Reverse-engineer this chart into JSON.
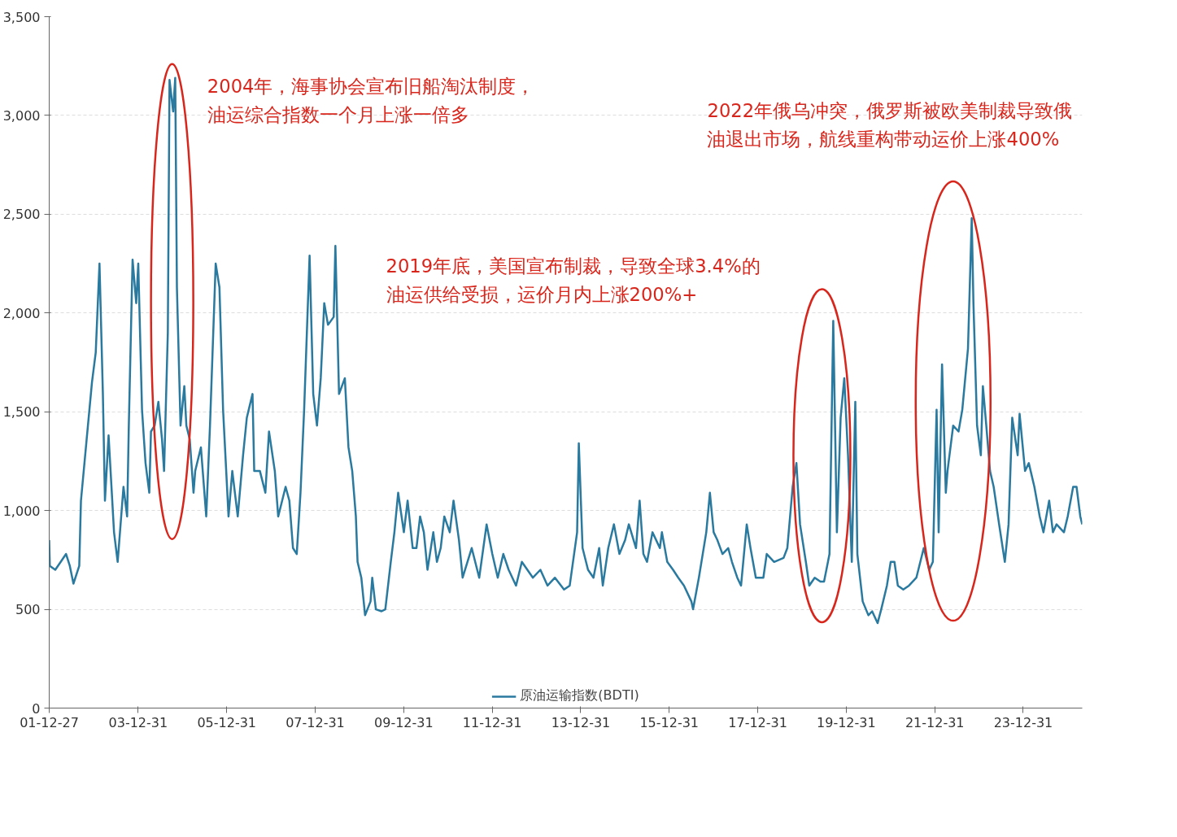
{
  "chart_data": {
    "type": "line",
    "annotations": [
      "2004年，海事协会宣布旧船淘汰制度，油运综合指数一个月上涨一倍多",
      "2019年底，美国宣布制裁，导致全球3.4%的油运供给受损，运价月内上涨200%+",
      "2022年俄乌冲突，俄罗斯被欧美制裁导致俄油退出市场，航线重构带动运价上涨400%"
    ],
    "xlim": [
      "2001-12-27",
      "2025-05-01"
    ],
    "xticks": [
      {
        "value": "2001-12-27",
        "label": "01-12-27"
      },
      {
        "value": "2003-12-31",
        "label": "03-12-31"
      },
      {
        "value": "2005-12-31",
        "label": "05-12-31"
      },
      {
        "value": "2007-12-31",
        "label": "07-12-31"
      },
      {
        "value": "2009-12-31",
        "label": "09-12-31"
      },
      {
        "value": "2011-12-31",
        "label": "11-12-31"
      },
      {
        "value": "2013-12-31",
        "label": "13-12-31"
      },
      {
        "value": "2015-12-31",
        "label": "15-12-31"
      },
      {
        "value": "2017-12-31",
        "label": "17-12-31"
      },
      {
        "value": "2019-12-31",
        "label": "19-12-31"
      },
      {
        "value": "2021-12-31",
        "label": "21-12-31"
      },
      {
        "value": "2023-12-31",
        "label": "23-12-31"
      }
    ],
    "ylim": [
      0,
      3500
    ],
    "yticks": [
      0,
      500,
      {
        "value": 1000,
        "label": "1,000"
      },
      {
        "value": 1500,
        "label": "1,500"
      },
      {
        "value": 2000,
        "label": "2,000"
      },
      {
        "value": 2500,
        "label": "2,500"
      },
      {
        "value": 3000,
        "label": "3,000"
      },
      {
        "value": 3500,
        "label": "3,500"
      }
    ],
    "grid": "y",
    "legend": "bottom",
    "marker": "none",
    "line_style": "solid",
    "x": [
      "2001-12-27",
      "2002-01-01",
      "2002-02-15",
      "2002-04-01",
      "2002-05-15",
      "2002-06-15",
      "2002-07-15",
      "2002-09-01",
      "2002-09-15",
      "2002-11-01",
      "2002-12-15",
      "2003-01-15",
      "2003-02-15",
      "2003-03-15",
      "2003-04-01",
      "2003-05-01",
      "2003-06-15",
      "2003-07-15",
      "2003-09-01",
      "2003-10-01",
      "2003-10-15",
      "2003-11-15",
      "2003-12-15",
      "2004-01-01",
      "2004-02-01",
      "2004-03-01",
      "2004-04-01",
      "2004-04-15",
      "2004-05-15",
      "2004-06-15",
      "2004-07-15",
      "2004-08-01",
      "2004-09-01",
      "2004-09-15",
      "2004-10-15",
      "2004-11-01",
      "2004-11-15",
      "2004-12-15",
      "2005-01-15",
      "2005-02-01",
      "2005-03-01",
      "2005-04-01",
      "2005-04-15",
      "2005-06-01",
      "2005-07-15",
      "2005-08-15",
      "2005-10-01",
      "2005-11-01",
      "2005-12-01",
      "2006-01-15",
      "2006-02-15",
      "2006-04-01",
      "2006-05-15",
      "2006-06-15",
      "2006-08-01",
      "2006-08-15",
      "2006-10-01",
      "2006-11-15",
      "2006-12-15",
      "2007-02-01",
      "2007-03-01",
      "2007-05-01",
      "2007-06-01",
      "2007-07-01",
      "2007-08-01",
      "2007-09-01",
      "2007-10-01",
      "2007-11-15",
      "2007-12-15",
      "2008-01-15",
      "2008-02-15",
      "2008-03-15",
      "2008-04-15",
      "2008-06-01",
      "2008-06-15",
      "2008-07-15",
      "2008-09-01",
      "2008-10-01",
      "2008-11-01",
      "2008-12-01",
      "2008-12-15",
      "2009-01-15",
      "2009-02-15",
      "2009-04-01",
      "2009-04-15",
      "2009-05-15",
      "2009-07-01",
      "2009-08-01",
      "2009-09-15",
      "2009-10-15",
      "2009-11-15",
      "2010-01-01",
      "2010-02-01",
      "2010-03-15",
      "2010-04-15",
      "2010-05-15",
      "2010-06-15",
      "2010-07-15",
      "2010-09-01",
      "2010-10-01",
      "2010-11-01",
      "2010-12-01",
      "2011-01-15",
      "2011-02-15",
      "2011-04-01",
      "2011-05-01",
      "2011-07-15",
      "2011-09-15",
      "2011-11-15",
      "2012-01-01",
      "2012-02-15",
      "2012-04-01",
      "2012-05-15",
      "2012-07-15",
      "2012-09-01",
      "2012-12-01",
      "2013-02-01",
      "2013-04-01",
      "2013-06-01",
      "2013-08-15",
      "2013-10-01",
      "2013-12-01",
      "2013-12-15",
      "2014-01-15",
      "2014-03-01",
      "2014-04-15",
      "2014-06-01",
      "2014-07-01",
      "2014-08-15",
      "2014-10-01",
      "2014-11-15",
      "2015-01-01",
      "2015-02-01",
      "2015-04-01",
      "2015-05-01",
      "2015-06-01",
      "2015-07-01",
      "2015-08-15",
      "2015-10-15",
      "2015-11-01",
      "2015-12-15",
      "2016-02-01",
      "2016-03-15",
      "2016-05-01",
      "2016-07-01",
      "2016-07-15",
      "2016-09-01",
      "2016-11-01",
      "2016-12-01",
      "2017-01-01",
      "2017-02-01",
      "2017-03-15",
      "2017-05-01",
      "2017-06-01",
      "2017-07-15",
      "2017-08-15",
      "2017-10-01",
      "2017-11-01",
      "2017-12-15",
      "2018-02-15",
      "2018-03-15",
      "2018-05-15",
      "2018-08-01",
      "2018-09-01",
      "2018-10-15",
      "2018-11-15",
      "2018-12-15",
      "2019-02-01",
      "2019-03-01",
      "2019-04-15",
      "2019-06-01",
      "2019-07-01",
      "2019-08-15",
      "2019-09-15",
      "2019-10-15",
      "2019-11-15",
      "2019-12-15",
      "2020-01-15",
      "2020-02-15",
      "2020-03-15",
      "2020-04-01",
      "2020-05-15",
      "2020-07-01",
      "2020-08-01",
      "2020-09-15",
      "2020-10-15",
      "2020-12-01",
      "2021-01-01",
      "2021-02-01",
      "2021-03-01",
      "2021-04-15",
      "2021-06-01",
      "2021-08-01",
      "2021-10-01",
      "2021-11-15",
      "2021-12-15",
      "2022-01-15",
      "2022-02-01",
      "2022-03-01",
      "2022-04-01",
      "2022-04-15",
      "2022-06-01",
      "2022-07-15",
      "2022-08-15",
      "2022-10-01",
      "2022-11-01",
      "2022-11-15",
      "2022-12-15",
      "2023-01-15",
      "2023-02-01",
      "2023-03-01",
      "2023-04-01",
      "2023-05-01",
      "2023-06-15",
      "2023-08-01",
      "2023-09-01",
      "2023-10-01",
      "2023-11-15",
      "2023-12-01",
      "2024-01-15",
      "2024-02-15",
      "2024-04-01",
      "2024-05-15",
      "2024-06-15",
      "2024-08-01",
      "2024-09-01",
      "2024-10-01",
      "2024-12-01",
      "2025-01-01",
      "2025-02-15",
      "2025-03-15",
      "2025-04-15",
      "2025-05-01"
    ],
    "series": [
      {
        "name": "原油运输指数(BDTI)",
        "color": "#2a7aa0",
        "values": [
          850,
          720,
          700,
          740,
          780,
          720,
          630,
          720,
          1050,
          1360,
          1650,
          1800,
          2250,
          1590,
          1050,
          1380,
          890,
          740,
          1120,
          970,
          1430,
          2270,
          2050,
          2250,
          1510,
          1240,
          1090,
          1400,
          1430,
          1550,
          1360,
          1200,
          1900,
          3180,
          3020,
          3190,
          2130,
          1430,
          1630,
          1430,
          1360,
          1090,
          1200,
          1320,
          970,
          1430,
          2250,
          2130,
          1510,
          970,
          1200,
          970,
          1280,
          1470,
          1590,
          1200,
          1200,
          1090,
          1400,
          1200,
          970,
          1120,
          1050,
          810,
          780,
          1090,
          1510,
          2290,
          1590,
          1430,
          1670,
          2050,
          1940,
          1980,
          2340,
          1590,
          1670,
          1320,
          1200,
          970,
          740,
          660,
          470,
          540,
          660,
          500,
          490,
          500,
          740,
          890,
          1090,
          890,
          1050,
          810,
          810,
          970,
          890,
          700,
          890,
          740,
          810,
          970,
          890,
          1050,
          850,
          660,
          810,
          660,
          930,
          780,
          660,
          780,
          700,
          620,
          740,
          660,
          700,
          620,
          660,
          600,
          620,
          890,
          1340,
          810,
          700,
          660,
          810,
          620,
          810,
          930,
          780,
          850,
          930,
          810,
          1050,
          780,
          740,
          890,
          810,
          890,
          740,
          700,
          660,
          620,
          540,
          500,
          660,
          890,
          1090,
          890,
          850,
          780,
          810,
          740,
          660,
          620,
          930,
          810,
          660,
          660,
          780,
          740,
          760,
          810,
          1120,
          1240,
          930,
          740,
          620,
          660,
          640,
          640,
          780,
          1960,
          890,
          1470,
          1670,
          1280,
          740,
          1550,
          780,
          540,
          470,
          490,
          430,
          500,
          620,
          740,
          740,
          620,
          600,
          620,
          660,
          810,
          700,
          740,
          1510,
          890,
          1740,
          1090,
          1200,
          1430,
          1400,
          1510,
          1820,
          2480,
          2050,
          1430,
          1280,
          1630,
          1430,
          1200,
          1120,
          930,
          740,
          930,
          1470,
          1280,
          1490,
          1200,
          1240,
          1120,
          970,
          890,
          1050,
          890,
          930,
          890,
          970,
          1120,
          1120,
          970,
          930
        ]
      }
    ]
  }
}
